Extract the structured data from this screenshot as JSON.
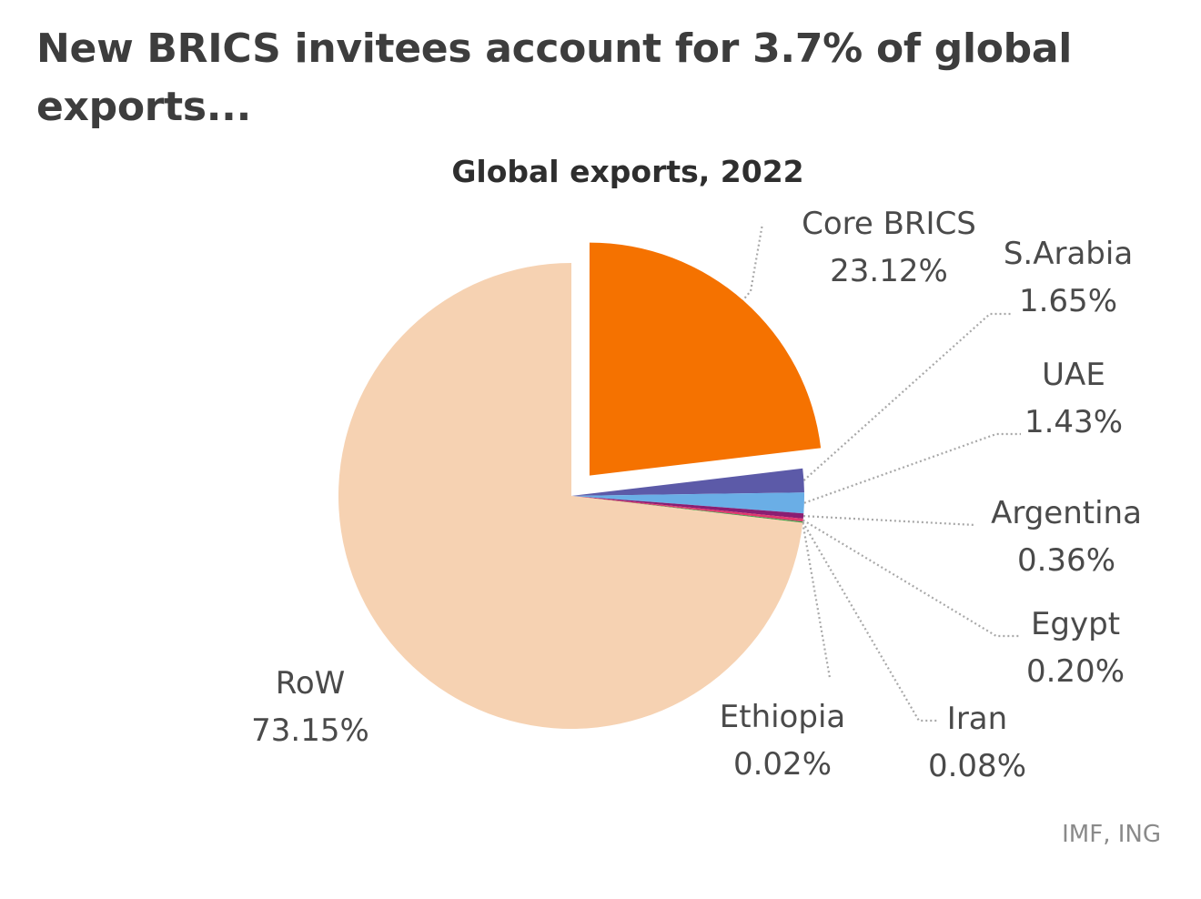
{
  "headline": "New BRICS invitees account for 3.7% of global exports...",
  "source": "IMF, ING",
  "chart_data": {
    "type": "pie",
    "title": "Global exports, 2022",
    "slices": [
      {
        "name": "Core BRICS",
        "value": 23.12,
        "label": "23.12%",
        "color": "#f57200",
        "exploded": true
      },
      {
        "name": "S.Arabia",
        "value": 1.65,
        "label": "1.65%",
        "color": "#5c5aa8"
      },
      {
        "name": "UAE",
        "value": 1.43,
        "label": "1.43%",
        "color": "#6aaee6"
      },
      {
        "name": "Argentina",
        "value": 0.36,
        "label": "0.36%",
        "color": "#8a1e72"
      },
      {
        "name": "Egypt",
        "value": 0.2,
        "label": "0.20%",
        "color": "#e0386e"
      },
      {
        "name": "Iran",
        "value": 0.08,
        "label": "0.08%",
        "color": "#3aa04a"
      },
      {
        "name": "Ethiopia",
        "value": 0.02,
        "label": "0.02%",
        "color": "#f2a060"
      },
      {
        "name": "RoW",
        "value": 73.15,
        "label": "73.15%",
        "color": "#f6d2b2"
      }
    ]
  }
}
